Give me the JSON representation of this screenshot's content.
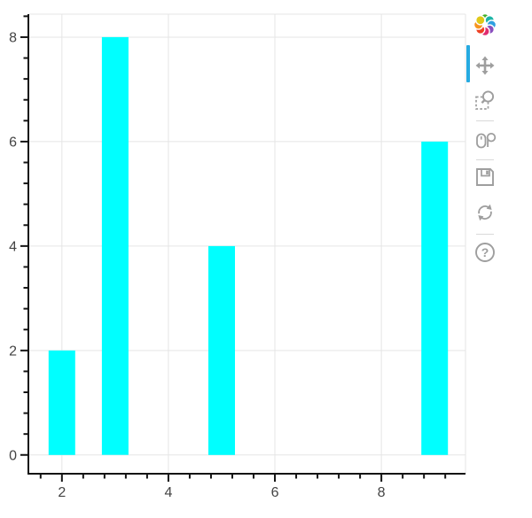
{
  "chart_data": {
    "type": "bar",
    "title": "",
    "xlabel": "",
    "ylabel": "",
    "x": [
      2,
      3,
      5,
      9
    ],
    "values": [
      2,
      8,
      4,
      6
    ],
    "bar_width": 0.5,
    "bar_color": "#00ffff",
    "x_axis": {
      "major_ticks": [
        2,
        4,
        6,
        8
      ],
      "minor_step": 0.4,
      "range": [
        1.37,
        9.58
      ]
    },
    "y_axis": {
      "major_ticks": [
        0,
        2,
        4,
        6,
        8
      ],
      "minor_step": 0.4,
      "range": [
        -0.36,
        8.44
      ]
    },
    "grid": "on",
    "legend": "none"
  },
  "toolbar": {
    "logo_name": "bokeh-logo",
    "active_tool": "pan",
    "help_glyph": "?",
    "tools": [
      {
        "name": "pan",
        "active": true
      },
      {
        "name": "box-zoom",
        "active": false
      },
      {
        "name": "wheel-zoom",
        "active": false
      },
      {
        "name": "save",
        "active": false
      },
      {
        "name": "reset",
        "active": false
      },
      {
        "name": "help",
        "active": false
      }
    ]
  },
  "colors": {
    "bar": "#00ffff",
    "grid": "#e5e5e5",
    "outline": "#e5e5e5",
    "axis": "#141414",
    "tick_label": "#444444",
    "active_indicator": "#26aae1",
    "tool_icon": "#9e9e9e",
    "background": "#ffffff",
    "logo_petals": [
      "#43b02a",
      "#1db5a7",
      "#2e9fe0",
      "#8a4fbe",
      "#e02a6f",
      "#ee4023",
      "#f7941e",
      "#e0c818"
    ]
  }
}
